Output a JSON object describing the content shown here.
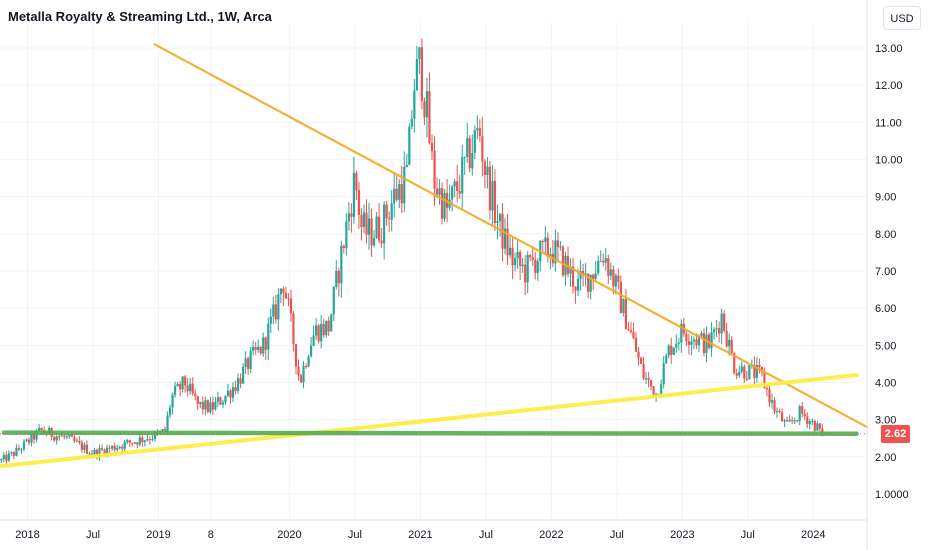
{
  "header": {
    "title": "Metalla Royalty & Streaming Ltd., 1W, Arca",
    "currency_label": "USD"
  },
  "colors": {
    "up": "#26a69a",
    "down": "#ef5350",
    "resistance_line": "#f5a623",
    "support_trend_line": "#ffeb3b",
    "support_horizontal": "#4caf50",
    "grid": "#f0f3fa",
    "axis_text": "#131722",
    "price_tag": "#ef5350"
  },
  "last_price": "2.62",
  "chart_data": {
    "type": "candlestick",
    "title": "Metalla Royalty & Streaming Ltd., 1W, Arca",
    "y_ticks": [
      "1.0000",
      "2.00",
      "3.00",
      "4.00",
      "5.00",
      "6.00",
      "7.00",
      "8.00",
      "9.00",
      "10.00",
      "11.00",
      "12.00",
      "13.00"
    ],
    "y_tick_values": [
      1,
      2,
      3,
      4,
      5,
      6,
      7,
      8,
      9,
      10,
      11,
      12,
      13
    ],
    "ylim": [
      0.3,
      13.7
    ],
    "x_ticks": [
      "2018",
      "Jul",
      "2019",
      "8",
      "2020",
      "Jul",
      "2021",
      "Jul",
      "2022",
      "Jul",
      "2023",
      "Jul",
      "2024"
    ],
    "x_tick_years": [
      2018.0,
      2018.5,
      2019.0,
      2019.4,
      2020.0,
      2020.5,
      2021.0,
      2021.5,
      2022.0,
      2022.5,
      2023.0,
      2023.5,
      2024.0
    ],
    "xlim": [
      2017.79,
      2024.41
    ],
    "price_series": {
      "t": [
        2017.8,
        2017.9,
        2018.0,
        2018.1,
        2018.2,
        2018.3,
        2018.4,
        2018.5,
        2018.6,
        2018.7,
        2018.8,
        2018.9,
        2019.0,
        2019.05,
        2019.1,
        2019.2,
        2019.3,
        2019.4,
        2019.5,
        2019.6,
        2019.7,
        2019.8,
        2019.9,
        2019.95,
        2020.0,
        2020.08,
        2020.15,
        2020.2,
        2020.3,
        2020.4,
        2020.5,
        2020.55,
        2020.6,
        2020.7,
        2020.8,
        2020.9,
        2020.95,
        2021.0,
        2021.05,
        2021.1,
        2021.2,
        2021.3,
        2021.4,
        2021.45,
        2021.5,
        2021.6,
        2021.7,
        2021.8,
        2021.9,
        2022.0,
        2022.1,
        2022.2,
        2022.3,
        2022.4,
        2022.5,
        2022.6,
        2022.7,
        2022.8,
        2022.9,
        2023.0,
        2023.1,
        2023.2,
        2023.3,
        2023.4,
        2023.5,
        2023.6,
        2023.7,
        2023.8,
        2023.9,
        2024.0,
        2024.08
      ],
      "close": [
        1.9,
        2.1,
        2.4,
        2.7,
        2.6,
        2.5,
        2.3,
        2.1,
        2.2,
        2.3,
        2.4,
        2.5,
        2.6,
        2.7,
        3.6,
        4.0,
        3.4,
        3.3,
        3.6,
        4.0,
        4.6,
        5.0,
        6.0,
        6.8,
        5.8,
        4.0,
        5.0,
        5.4,
        5.5,
        7.5,
        9.5,
        8.2,
        8.0,
        8.2,
        9.0,
        9.6,
        12.0,
        12.6,
        11.2,
        9.5,
        8.6,
        9.4,
        10.4,
        10.8,
        9.6,
        8.2,
        7.3,
        7.0,
        7.4,
        7.6,
        7.2,
        6.6,
        6.9,
        7.5,
        6.5,
        5.4,
        4.2,
        3.7,
        4.9,
        5.4,
        5.2,
        5.0,
        5.8,
        4.4,
        4.3,
        4.2,
        3.3,
        2.8,
        3.2,
        2.9,
        2.62
      ]
    },
    "annotations": [
      {
        "name": "descending-resistance",
        "from": [
          2018.97,
          13.1
        ],
        "to": [
          2024.41,
          2.8
        ]
      },
      {
        "name": "ascending-support",
        "from": [
          2017.8,
          1.75
        ],
        "to": [
          2024.33,
          4.2
        ]
      },
      {
        "name": "horizontal-support",
        "from": [
          2017.82,
          2.65
        ],
        "to": [
          2024.33,
          2.62
        ]
      }
    ],
    "grid": true,
    "legend": "none"
  }
}
